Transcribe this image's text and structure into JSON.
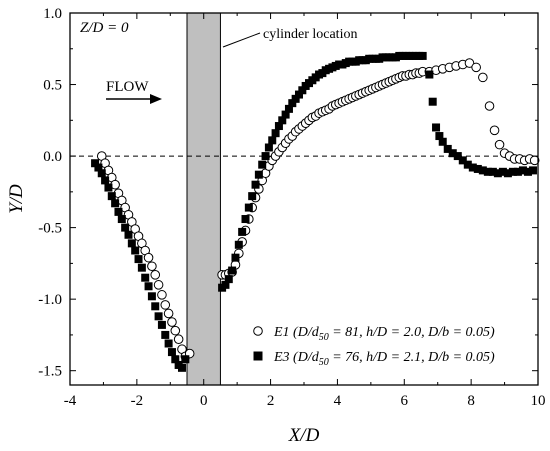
{
  "chart_data": {
    "type": "scatter",
    "xlabel": "X/D",
    "ylabel": "Y/D",
    "xlim": [
      -4,
      10
    ],
    "ylim": [
      -1.6,
      1.0
    ],
    "x_ticks": [
      -4,
      -2,
      0,
      2,
      4,
      6,
      8,
      10
    ],
    "x_tick_labels": [
      "-4",
      "-2",
      "0",
      "2",
      "4",
      "6",
      "8",
      "10"
    ],
    "y_ticks": [
      -1.5,
      -1.0,
      -0.5,
      0.0,
      0.5,
      1.0
    ],
    "y_tick_labels": [
      "-1.5",
      "-1.0",
      "-0.5",
      "0.0",
      "0.5",
      "1.0"
    ],
    "grid": false,
    "legend_position": "bottom-right",
    "plane_label": "Z/D = 0",
    "flow_label": "FLOW",
    "cylinder_label": "cylinder location",
    "cylinder_extent_x": [
      -0.5,
      0.5
    ],
    "reference_line_y": 0.0,
    "series": [
      {
        "name": "E1",
        "legend_label_parts": [
          "E1 (D/d",
          "50",
          " = 81, h/D = 2.0, D/b = 0.05)"
        ],
        "marker": "open-circle",
        "x": [
          -3.05,
          -2.95,
          -2.85,
          -2.75,
          -2.65,
          -2.55,
          -2.45,
          -2.35,
          -2.25,
          -2.15,
          -2.05,
          -1.95,
          -1.85,
          -1.75,
          -1.65,
          -1.55,
          -1.45,
          -1.35,
          -1.25,
          -1.15,
          -1.05,
          -0.95,
          -0.85,
          -0.75,
          -0.65,
          -0.55,
          -0.42,
          0.55,
          0.65,
          0.75,
          0.85,
          0.95,
          1.05,
          1.15,
          1.25,
          1.35,
          1.45,
          1.55,
          1.65,
          1.75,
          1.85,
          1.95,
          2.05,
          2.15,
          2.25,
          2.35,
          2.45,
          2.55,
          2.65,
          2.75,
          2.85,
          2.95,
          3.05,
          3.15,
          3.25,
          3.35,
          3.45,
          3.55,
          3.65,
          3.75,
          3.85,
          3.95,
          4.05,
          4.15,
          4.25,
          4.35,
          4.45,
          4.55,
          4.65,
          4.75,
          4.85,
          4.95,
          5.05,
          5.15,
          5.25,
          5.35,
          5.45,
          5.55,
          5.65,
          5.75,
          5.85,
          5.95,
          6.05,
          6.15,
          6.25,
          6.35,
          6.45,
          6.55,
          6.75,
          6.95,
          7.15,
          7.35,
          7.55,
          7.75,
          7.95,
          8.15,
          8.35,
          8.55,
          8.7,
          8.85,
          9.0,
          9.15,
          9.3,
          9.45,
          9.6,
          9.75,
          9.9
        ],
        "y": [
          0.0,
          -0.05,
          -0.1,
          -0.15,
          -0.2,
          -0.26,
          -0.31,
          -0.36,
          -0.41,
          -0.46,
          -0.51,
          -0.56,
          -0.61,
          -0.66,
          -0.71,
          -0.77,
          -0.83,
          -0.9,
          -0.97,
          -1.04,
          -1.1,
          -1.16,
          -1.22,
          -1.28,
          -1.35,
          -1.4,
          -1.38,
          -0.83,
          -0.83,
          -0.82,
          -0.81,
          -0.76,
          -0.68,
          -0.6,
          -0.52,
          -0.44,
          -0.36,
          -0.29,
          -0.23,
          -0.17,
          -0.12,
          -0.07,
          -0.03,
          0.0,
          0.03,
          0.06,
          0.09,
          0.12,
          0.14,
          0.17,
          0.19,
          0.21,
          0.23,
          0.25,
          0.27,
          0.28,
          0.3,
          0.31,
          0.32,
          0.33,
          0.35,
          0.36,
          0.37,
          0.38,
          0.39,
          0.4,
          0.41,
          0.42,
          0.43,
          0.44,
          0.45,
          0.46,
          0.47,
          0.48,
          0.49,
          0.5,
          0.51,
          0.52,
          0.53,
          0.54,
          0.55,
          0.56,
          0.56,
          0.57,
          0.57,
          0.58,
          0.58,
          0.59,
          0.59,
          0.6,
          0.61,
          0.62,
          0.63,
          0.64,
          0.65,
          0.62,
          0.55,
          0.35,
          0.18,
          0.08,
          0.02,
          0.0,
          -0.02,
          -0.02,
          -0.03,
          -0.02,
          -0.03
        ]
      },
      {
        "name": "E3",
        "legend_label_parts": [
          "E3 (D/d",
          "50",
          " = 76, h/D = 2.1, D/b = 0.05)"
        ],
        "marker": "filled-square",
        "x": [
          -3.25,
          -3.15,
          -3.05,
          -2.95,
          -2.85,
          -2.75,
          -2.65,
          -2.55,
          -2.45,
          -2.35,
          -2.25,
          -2.15,
          -2.05,
          -1.95,
          -1.85,
          -1.75,
          -1.65,
          -1.55,
          -1.45,
          -1.35,
          -1.25,
          -1.15,
          -1.05,
          -0.95,
          -0.85,
          -0.75,
          -0.65,
          -0.55,
          0.55,
          0.65,
          0.75,
          0.85,
          0.95,
          1.05,
          1.15,
          1.25,
          1.35,
          1.45,
          1.55,
          1.65,
          1.75,
          1.85,
          1.95,
          2.05,
          2.15,
          2.25,
          2.35,
          2.45,
          2.55,
          2.65,
          2.75,
          2.85,
          2.95,
          3.05,
          3.15,
          3.25,
          3.35,
          3.45,
          3.55,
          3.65,
          3.75,
          3.85,
          3.95,
          4.05,
          4.15,
          4.25,
          4.35,
          4.45,
          4.55,
          4.65,
          4.75,
          4.85,
          4.95,
          5.05,
          5.15,
          5.25,
          5.35,
          5.45,
          5.55,
          5.65,
          5.75,
          5.85,
          5.95,
          6.05,
          6.15,
          6.25,
          6.35,
          6.45,
          6.55,
          6.75,
          6.85,
          6.95,
          7.05,
          7.15,
          7.3,
          7.45,
          7.6,
          7.75,
          7.9,
          8.05,
          8.2,
          8.35,
          8.5,
          8.65,
          8.8,
          8.95,
          9.1,
          9.25,
          9.4,
          9.55,
          9.7,
          9.85
        ],
        "y": [
          -0.05,
          -0.08,
          -0.12,
          -0.17,
          -0.22,
          -0.28,
          -0.33,
          -0.39,
          -0.44,
          -0.5,
          -0.55,
          -0.61,
          -0.66,
          -0.72,
          -0.78,
          -0.85,
          -0.91,
          -0.98,
          -1.05,
          -1.12,
          -1.18,
          -1.25,
          -1.31,
          -1.37,
          -1.42,
          -1.46,
          -1.48,
          -1.42,
          -0.92,
          -0.9,
          -0.86,
          -0.8,
          -0.71,
          -0.62,
          -0.53,
          -0.44,
          -0.36,
          -0.28,
          -0.2,
          -0.13,
          -0.06,
          0.0,
          0.06,
          0.11,
          0.16,
          0.21,
          0.25,
          0.29,
          0.33,
          0.37,
          0.4,
          0.43,
          0.46,
          0.49,
          0.51,
          0.53,
          0.55,
          0.57,
          0.58,
          0.6,
          0.61,
          0.62,
          0.63,
          0.64,
          0.64,
          0.65,
          0.66,
          0.66,
          0.66,
          0.67,
          0.67,
          0.67,
          0.68,
          0.68,
          0.68,
          0.68,
          0.69,
          0.69,
          0.69,
          0.69,
          0.69,
          0.7,
          0.7,
          0.7,
          0.7,
          0.7,
          0.7,
          0.7,
          0.7,
          0.57,
          0.38,
          0.2,
          0.14,
          0.1,
          0.05,
          0.02,
          0.0,
          -0.03,
          -0.06,
          -0.08,
          -0.09,
          -0.1,
          -0.11,
          -0.11,
          -0.12,
          -0.11,
          -0.12,
          -0.11,
          -0.11,
          -0.1,
          -0.11,
          -0.1
        ]
      }
    ]
  }
}
